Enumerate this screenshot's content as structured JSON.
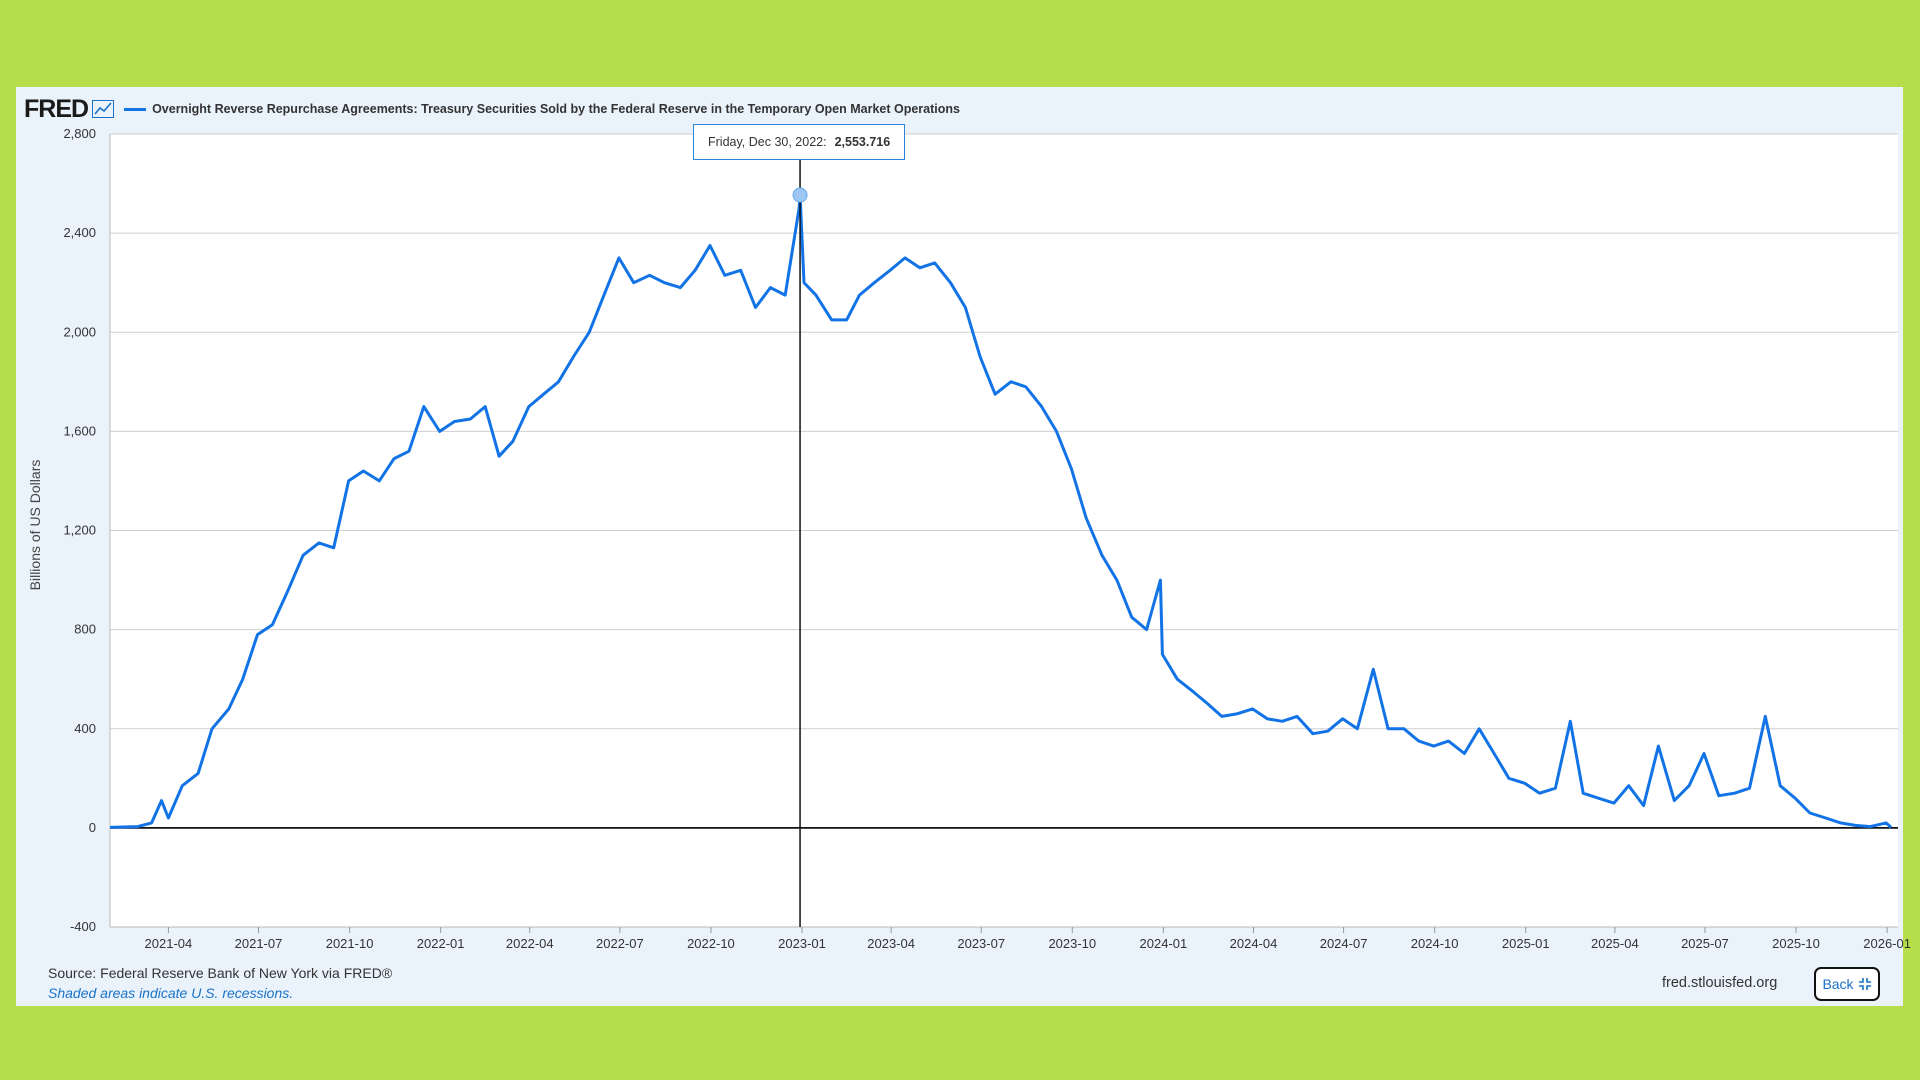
{
  "header": {
    "logo": "FRED",
    "series_title": "Overnight Reverse Repurchase Agreements: Treasury Securities Sold by the Federal Reserve in the Temporary Open Market Operations"
  },
  "tooltip": {
    "date": "Friday, Dec 30, 2022:",
    "value": "2,553.716"
  },
  "footer": {
    "source": "Source: Federal Reserve Bank of New York via FRED®",
    "note": "Shaded areas indicate U.S. recessions.",
    "site": "fred.stlouisfed.org",
    "back_label": "Back"
  },
  "colors": {
    "series": "#1273e6",
    "background": "#b5de4a",
    "panel": "#eaf2fb"
  },
  "icons": {
    "logo_icon": "chart-line-icon",
    "back_icon": "collapse-arrows-icon"
  },
  "chart_data": {
    "type": "line",
    "ylabel": "Billions of US Dollars",
    "ylim": [
      -400,
      2800
    ],
    "yticks": [
      -400,
      0,
      400,
      800,
      1200,
      1600,
      2000,
      2400,
      2800
    ],
    "ytick_labels": [
      "-400",
      "0",
      "400",
      "800",
      "1,200",
      "1,600",
      "2,000",
      "2,400",
      "2,800"
    ],
    "xlim": [
      "2021-02-01",
      "2026-01-12"
    ],
    "xticks": [
      "2021-04-01",
      "2021-07-01",
      "2021-10-01",
      "2022-01-01",
      "2022-04-01",
      "2022-07-01",
      "2022-10-01",
      "2023-01-01",
      "2023-04-01",
      "2023-07-01",
      "2023-10-01",
      "2024-01-01",
      "2024-04-01",
      "2024-07-01",
      "2024-10-01",
      "2025-01-01",
      "2025-04-01",
      "2025-07-01",
      "2025-10-01",
      "2026-01-01"
    ],
    "xtick_labels": [
      "2021-04",
      "2021-07",
      "2021-10",
      "2022-01",
      "2022-04",
      "2022-07",
      "2022-10",
      "2023-01",
      "2023-04",
      "2023-07",
      "2023-10",
      "2024-01",
      "2024-04",
      "2024-07",
      "2024-10",
      "2025-01",
      "2025-04",
      "2025-07",
      "2025-10",
      "2026-01"
    ],
    "grid": true,
    "highlight": {
      "x": "2022-12-30",
      "y": 2553.716
    },
    "series": [
      {
        "name": "Overnight Reverse Repurchase Agreements: Treasury Securities Sold by the Federal Reserve in the Temporary Open Market Operations",
        "x": [
          "2021-02-01",
          "2021-03-01",
          "2021-03-15",
          "2021-03-25",
          "2021-04-01",
          "2021-04-15",
          "2021-05-01",
          "2021-05-15",
          "2021-06-01",
          "2021-06-15",
          "2021-06-30",
          "2021-07-15",
          "2021-07-31",
          "2021-08-15",
          "2021-08-31",
          "2021-09-15",
          "2021-09-30",
          "2021-10-15",
          "2021-10-31",
          "2021-11-15",
          "2021-11-30",
          "2021-12-15",
          "2021-12-31",
          "2022-01-15",
          "2022-01-31",
          "2022-02-15",
          "2022-03-01",
          "2022-03-15",
          "2022-03-31",
          "2022-04-15",
          "2022-04-30",
          "2022-05-15",
          "2022-05-31",
          "2022-06-15",
          "2022-06-30",
          "2022-07-15",
          "2022-07-31",
          "2022-08-15",
          "2022-08-31",
          "2022-09-15",
          "2022-09-30",
          "2022-10-15",
          "2022-10-31",
          "2022-11-15",
          "2022-11-30",
          "2022-12-15",
          "2022-12-29",
          "2022-12-30",
          "2023-01-03",
          "2023-01-15",
          "2023-01-31",
          "2023-02-15",
          "2023-02-28",
          "2023-03-15",
          "2023-03-31",
          "2023-04-15",
          "2023-04-30",
          "2023-05-15",
          "2023-05-31",
          "2023-06-15",
          "2023-06-30",
          "2023-07-15",
          "2023-07-31",
          "2023-08-15",
          "2023-08-31",
          "2023-09-15",
          "2023-09-30",
          "2023-10-15",
          "2023-10-31",
          "2023-11-15",
          "2023-11-30",
          "2023-12-15",
          "2023-12-29",
          "2023-12-31",
          "2024-01-15",
          "2024-01-31",
          "2024-02-15",
          "2024-02-29",
          "2024-03-15",
          "2024-03-31",
          "2024-04-15",
          "2024-04-30",
          "2024-05-15",
          "2024-05-31",
          "2024-06-15",
          "2024-06-30",
          "2024-07-15",
          "2024-07-31",
          "2024-08-15",
          "2024-08-31",
          "2024-09-15",
          "2024-09-30",
          "2024-10-15",
          "2024-10-31",
          "2024-11-15",
          "2024-11-30",
          "2024-12-15",
          "2024-12-31",
          "2025-01-15",
          "2025-01-31",
          "2025-02-15",
          "2025-02-28",
          "2025-03-15",
          "2025-03-31",
          "2025-04-15",
          "2025-04-30",
          "2025-05-15",
          "2025-05-31",
          "2025-06-15",
          "2025-06-30",
          "2025-07-15",
          "2025-07-31",
          "2025-08-15",
          "2025-08-31",
          "2025-09-15",
          "2025-09-30",
          "2025-10-15",
          "2025-10-31",
          "2025-11-15",
          "2025-11-30",
          "2025-12-15",
          "2025-12-31",
          "2026-01-05"
        ],
        "y": [
          2,
          5,
          20,
          110,
          40,
          170,
          220,
          400,
          480,
          600,
          780,
          820,
          960,
          1100,
          1150,
          1130,
          1400,
          1440,
          1400,
          1490,
          1520,
          1700,
          1600,
          1640,
          1650,
          1700,
          1500,
          1560,
          1700,
          1750,
          1800,
          1900,
          2000,
          2150,
          2300,
          2200,
          2230,
          2200,
          2180,
          2250,
          2350,
          2230,
          2250,
          2100,
          2180,
          2150,
          2500,
          2554,
          2200,
          2150,
          2050,
          2050,
          2150,
          2200,
          2250,
          2300,
          2260,
          2280,
          2200,
          2100,
          1900,
          1750,
          1800,
          1780,
          1700,
          1600,
          1450,
          1250,
          1100,
          1000,
          850,
          800,
          1000,
          700,
          600,
          550,
          500,
          450,
          460,
          480,
          440,
          430,
          450,
          380,
          390,
          440,
          400,
          640,
          400,
          400,
          350,
          330,
          350,
          300,
          400,
          300,
          200,
          180,
          140,
          160,
          430,
          140,
          120,
          100,
          170,
          90,
          330,
          110,
          170,
          300,
          130,
          140,
          160,
          450,
          170,
          120,
          60,
          40,
          20,
          10,
          5,
          20,
          2
        ]
      }
    ]
  }
}
